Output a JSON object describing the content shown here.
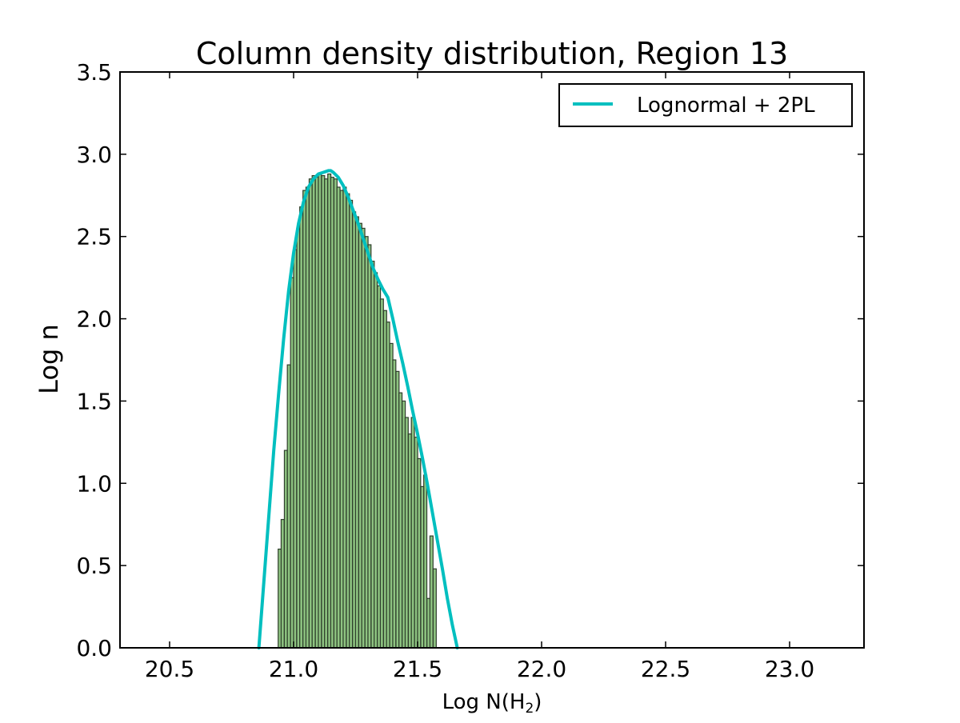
{
  "chart_data": {
    "type": "bar",
    "title": "Column density distribution, Region 13",
    "xlabel_main": "Log N(H",
    "xlabel_sub": "2",
    "xlabel_close": ")",
    "ylabel": "Log n",
    "xlim": [
      20.3,
      23.3
    ],
    "ylim": [
      0.0,
      3.5
    ],
    "x_ticks": [
      20.5,
      21.0,
      21.5,
      22.0,
      22.5,
      23.0
    ],
    "x_tick_labels": [
      "20.5",
      "21.0",
      "21.5",
      "22.0",
      "22.5",
      "23.0"
    ],
    "y_ticks": [
      0.0,
      0.5,
      1.0,
      1.5,
      2.0,
      2.5,
      3.0,
      3.5
    ],
    "y_tick_labels": [
      "0.0",
      "0.5",
      "1.0",
      "1.5",
      "2.0",
      "2.5",
      "3.0",
      "3.5"
    ],
    "legend_position": "top-right",
    "grid": false,
    "histogram": {
      "bin_width": 0.0125,
      "color": "#7ab96b",
      "edge_color": "#2f3f2c",
      "bins": [
        [
          20.944,
          0.6
        ],
        [
          20.956,
          0.78
        ],
        [
          20.969,
          1.2
        ],
        [
          20.981,
          1.72
        ],
        [
          20.994,
          2.25
        ],
        [
          21.006,
          2.42
        ],
        [
          21.019,
          2.55
        ],
        [
          21.031,
          2.68
        ],
        [
          21.044,
          2.78
        ],
        [
          21.056,
          2.8
        ],
        [
          21.069,
          2.85
        ],
        [
          21.081,
          2.87
        ],
        [
          21.094,
          2.86
        ],
        [
          21.106,
          2.88
        ],
        [
          21.119,
          2.87
        ],
        [
          21.131,
          2.85
        ],
        [
          21.144,
          2.88
        ],
        [
          21.156,
          2.86
        ],
        [
          21.169,
          2.85
        ],
        [
          21.181,
          2.8
        ],
        [
          21.194,
          2.78
        ],
        [
          21.206,
          2.8
        ],
        [
          21.219,
          2.76
        ],
        [
          21.231,
          2.72
        ],
        [
          21.244,
          2.65
        ],
        [
          21.256,
          2.62
        ],
        [
          21.269,
          2.58
        ],
        [
          21.281,
          2.55
        ],
        [
          21.294,
          2.5
        ],
        [
          21.306,
          2.45
        ],
        [
          21.319,
          2.35
        ],
        [
          21.331,
          2.28
        ],
        [
          21.344,
          2.2
        ],
        [
          21.356,
          2.12
        ],
        [
          21.369,
          2.05
        ],
        [
          21.381,
          1.98
        ],
        [
          21.394,
          1.85
        ],
        [
          21.406,
          1.75
        ],
        [
          21.419,
          1.68
        ],
        [
          21.431,
          1.55
        ],
        [
          21.444,
          1.5
        ],
        [
          21.456,
          1.4
        ],
        [
          21.469,
          1.3
        ],
        [
          21.481,
          1.4
        ],
        [
          21.494,
          1.28
        ],
        [
          21.506,
          1.15
        ],
        [
          21.519,
          0.98
        ],
        [
          21.531,
          1.05
        ],
        [
          21.544,
          0.3
        ],
        [
          21.556,
          0.68
        ],
        [
          21.569,
          0.48
        ]
      ]
    },
    "series": [
      {
        "name": "Lognormal + 2PL",
        "color": "#00bfbf",
        "x": [
          20.86,
          20.88,
          20.9,
          20.92,
          20.94,
          20.96,
          20.98,
          21.0,
          21.02,
          21.04,
          21.06,
          21.08,
          21.1,
          21.12,
          21.14,
          21.15,
          21.16,
          21.18,
          21.2,
          21.22,
          21.24,
          21.26,
          21.28,
          21.3,
          21.32,
          21.34,
          21.36,
          21.38,
          21.4,
          21.42,
          21.44,
          21.46,
          21.48,
          21.5,
          21.52,
          21.54,
          21.56,
          21.58,
          21.6,
          21.62,
          21.64,
          21.66
        ],
        "y": [
          0.0,
          0.4,
          0.8,
          1.2,
          1.55,
          1.88,
          2.17,
          2.4,
          2.58,
          2.71,
          2.8,
          2.85,
          2.88,
          2.89,
          2.9,
          2.9,
          2.89,
          2.86,
          2.81,
          2.74,
          2.66,
          2.58,
          2.49,
          2.4,
          2.31,
          2.24,
          2.18,
          2.13,
          2.0,
          1.86,
          1.73,
          1.59,
          1.44,
          1.3,
          1.15,
          0.99,
          0.82,
          0.65,
          0.48,
          0.3,
          0.14,
          0.0
        ]
      }
    ]
  }
}
